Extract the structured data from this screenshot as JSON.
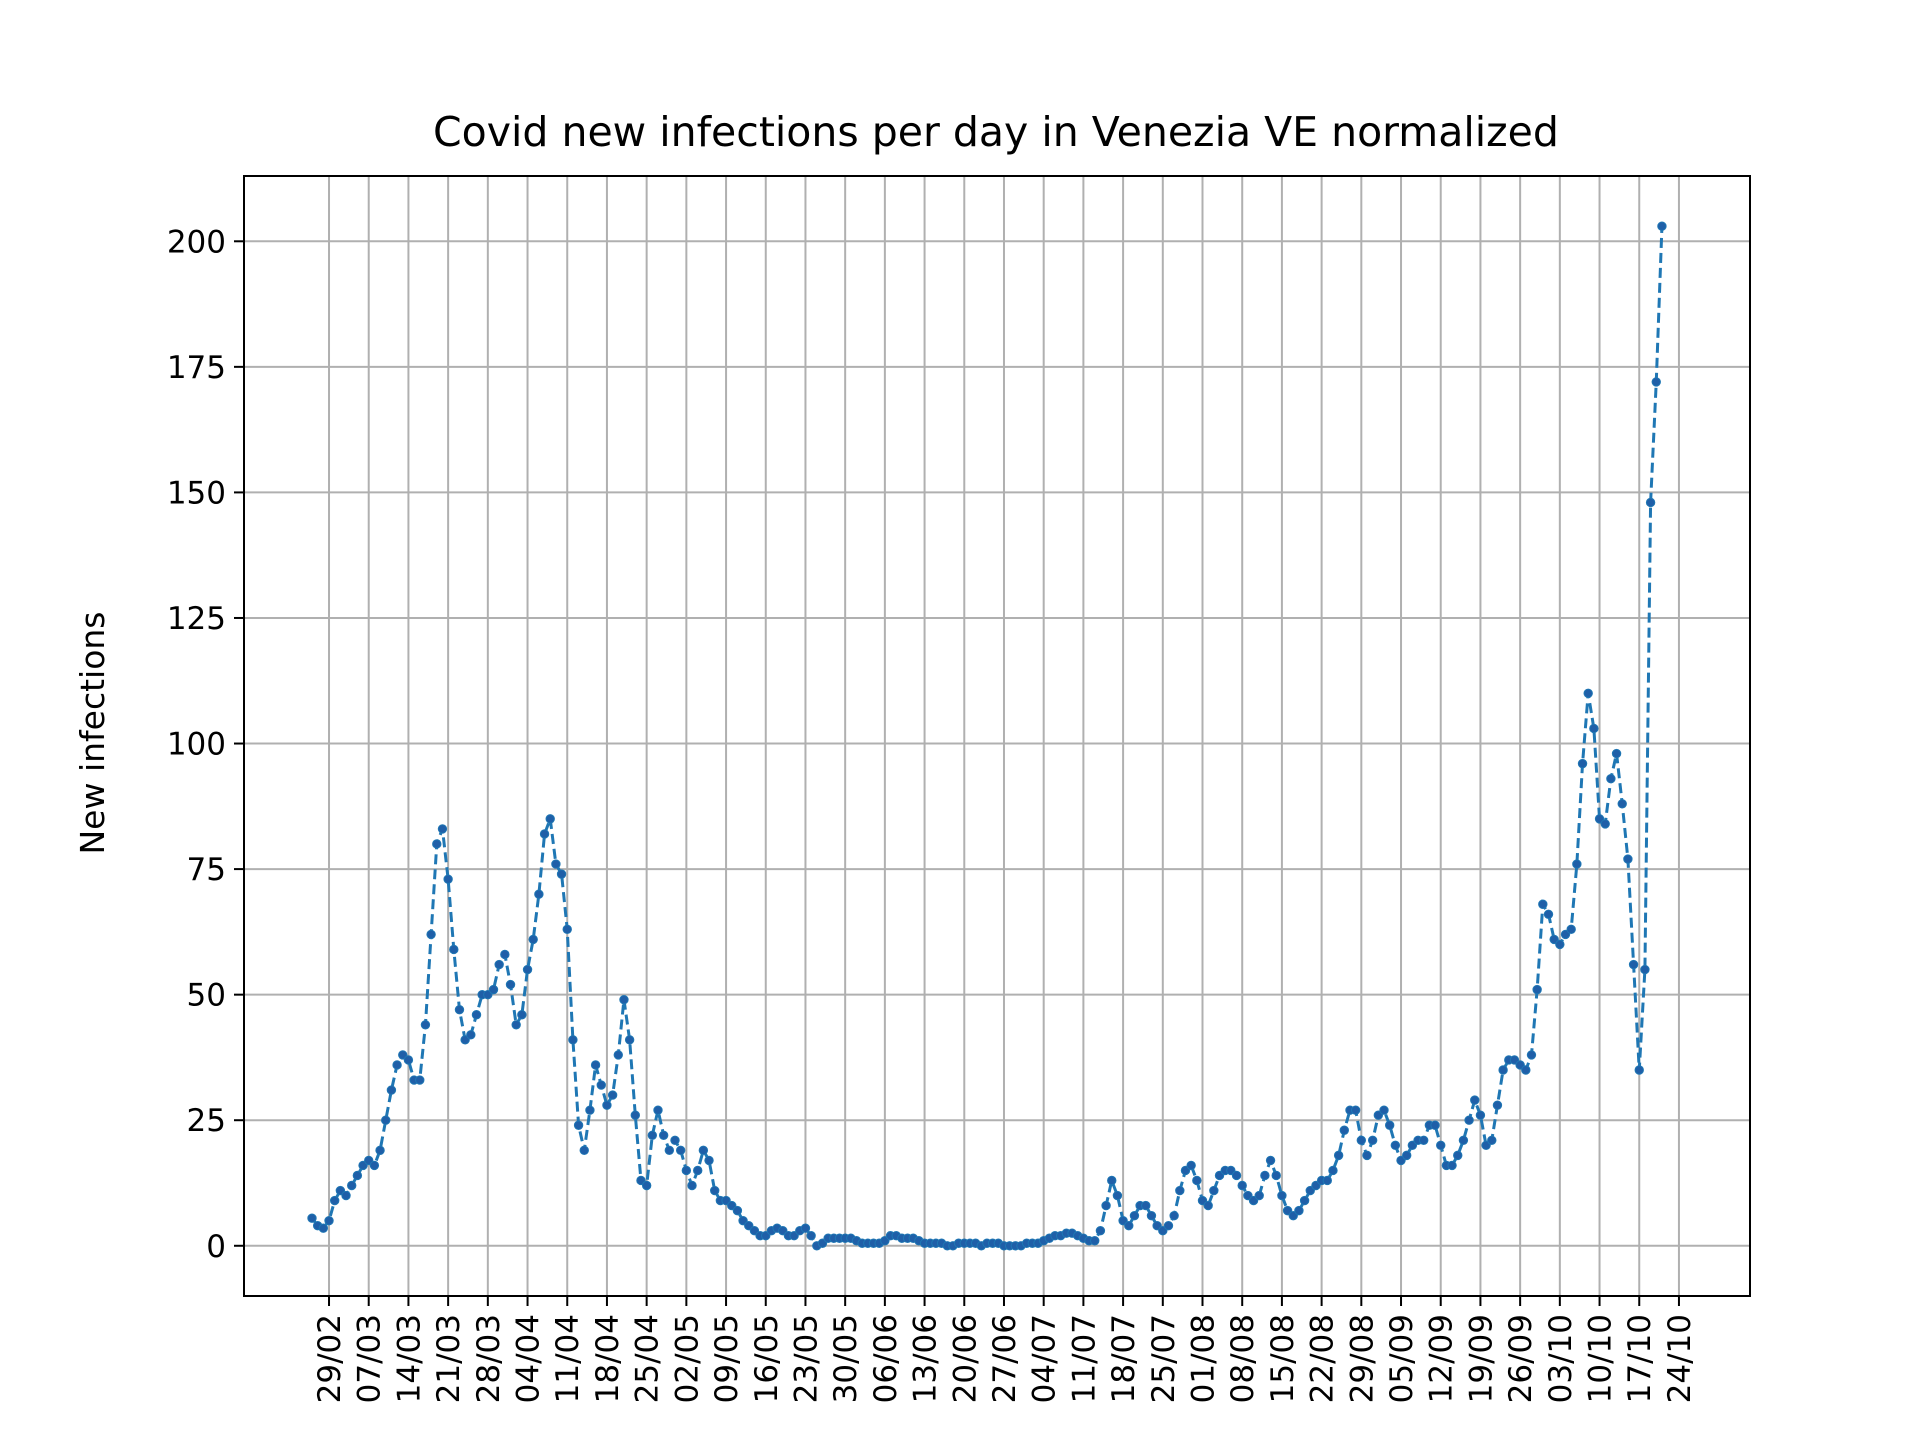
{
  "chart_data": {
    "type": "line",
    "title": "Covid new infections per day in Venezia VE normalized",
    "xlabel": "",
    "ylabel": "New infections",
    "x_start_date": "2020-02-26",
    "x_tick_labels": [
      "29/02",
      "07/03",
      "14/03",
      "21/03",
      "28/03",
      "04/04",
      "11/04",
      "18/04",
      "25/04",
      "02/05",
      "09/05",
      "16/05",
      "23/05",
      "30/05",
      "06/06",
      "13/06",
      "20/06",
      "27/06",
      "04/07",
      "11/07",
      "18/07",
      "25/07",
      "01/08",
      "08/08",
      "15/08",
      "22/08",
      "29/08",
      "05/09",
      "12/09",
      "19/09",
      "26/09",
      "03/10",
      "10/10",
      "17/10",
      "24/10"
    ],
    "y_ticks": [
      0,
      25,
      50,
      75,
      100,
      125,
      150,
      175,
      200
    ],
    "ylim": [
      -10,
      213
    ],
    "grid": true,
    "line_style": "dashed",
    "marker": "dot",
    "color": "#1f77b4",
    "marker_color": "#1f5fa8",
    "series": [
      {
        "values": [
          5.5,
          4,
          3.5,
          5,
          9,
          11,
          10,
          12,
          14,
          16,
          17,
          16,
          19,
          25,
          31,
          36,
          38,
          37,
          33,
          33,
          44,
          62,
          80,
          83,
          73,
          59,
          47,
          41,
          42,
          46,
          50,
          50,
          51,
          56,
          58,
          52,
          44,
          46,
          55,
          61,
          70,
          82,
          85,
          76,
          74,
          63,
          41,
          24,
          19,
          27,
          36,
          32,
          28,
          30,
          38,
          49,
          41,
          26,
          13,
          12,
          22,
          27,
          22,
          19,
          21,
          19,
          15,
          12,
          15,
          19,
          17,
          11,
          9,
          9,
          8,
          7,
          5,
          4,
          3,
          2,
          2,
          3,
          3.5,
          3,
          2,
          2,
          3,
          3.5,
          2,
          0,
          0.5,
          1.5,
          1.5,
          1.5,
          1.5,
          1.5,
          1,
          0.5,
          0.5,
          0.5,
          0.5,
          1,
          2,
          2,
          1.5,
          1.5,
          1.5,
          1,
          0.5,
          0.5,
          0.5,
          0.5,
          0,
          0,
          0.5,
          0.5,
          0.5,
          0.5,
          0,
          0.5,
          0.5,
          0.5,
          0,
          0,
          0,
          0,
          0.5,
          0.5,
          0.5,
          1,
          1.5,
          2,
          2,
          2.5,
          2.5,
          2,
          1.5,
          1,
          1,
          3,
          8,
          13,
          10,
          5,
          4,
          6,
          8,
          8,
          6,
          4,
          3,
          4,
          6,
          11,
          15,
          16,
          13,
          9,
          8,
          11,
          14,
          15,
          15,
          14,
          12,
          10,
          9,
          10,
          14,
          17,
          14,
          10,
          7,
          6,
          7,
          9,
          11,
          12,
          13,
          13,
          15,
          18,
          23,
          27,
          27,
          21,
          18,
          21,
          26,
          27,
          24,
          20,
          17,
          18,
          20,
          21,
          21,
          24,
          24,
          20,
          16,
          16,
          18,
          21,
          25,
          29,
          26,
          20,
          21,
          28,
          35,
          37,
          37,
          36,
          35,
          38,
          51,
          68,
          66,
          61,
          60,
          62,
          63,
          76,
          96,
          110,
          103,
          85,
          84,
          93,
          98,
          88,
          77,
          56,
          35,
          55,
          148,
          172,
          203
        ]
      }
    ]
  }
}
